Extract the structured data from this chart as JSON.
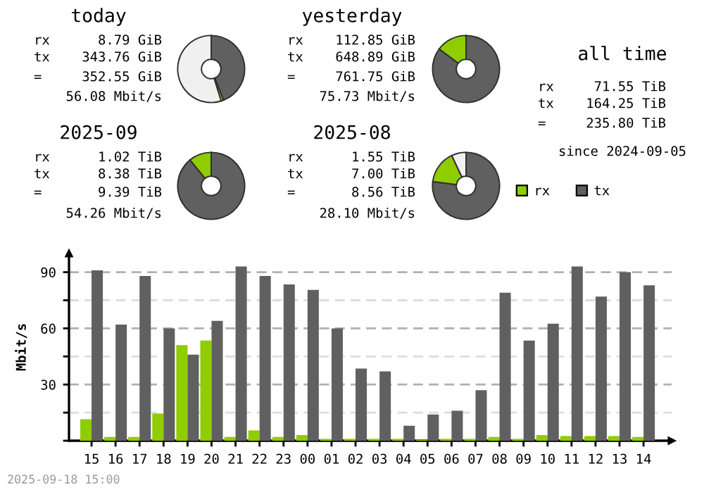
{
  "chart_data": [
    {
      "type": "donut",
      "title": "today",
      "categories": [
        null,
        null,
        null
      ],
      "values": [
        44,
        1.2,
        54.8
      ],
      "colors": [
        "#606060",
        "#8fcc00",
        "#f0f0f0"
      ],
      "annotations": [
        "rx 8.79 GiB",
        "tx 343.76 GiB",
        "= 352.55 GiB",
        "56.08 Mbit/s"
      ]
    },
    {
      "type": "donut",
      "title": "yesterday",
      "categories": [
        null,
        null
      ],
      "values": [
        85.2,
        14.8
      ],
      "colors": [
        "#606060",
        "#8fcc00"
      ],
      "annotations": [
        "rx 112.85 GiB",
        "tx 648.89 GiB",
        "= 761.75 GiB",
        "75.73 Mbit/s"
      ]
    },
    {
      "type": "other",
      "title": "all time",
      "annotations": [
        "rx 71.55 TiB",
        "tx 164.25 TiB",
        "= 235.80 TiB",
        "since 2024-09-05"
      ]
    },
    {
      "type": "donut",
      "title": "2025-09",
      "categories": [
        null,
        null
      ],
      "values": [
        89.1,
        10.9
      ],
      "colors": [
        "#606060",
        "#8fcc00"
      ],
      "annotations": [
        "rx 1.02 TiB",
        "tx 8.38 TiB",
        "= 9.39 TiB",
        "54.26 Mbit/s"
      ]
    },
    {
      "type": "donut",
      "title": "2025-08",
      "categories": [
        null,
        null,
        null
      ],
      "values": [
        77,
        16,
        7
      ],
      "colors": [
        "#606060",
        "#8fcc00",
        "#f0f0f0"
      ],
      "annotations": [
        "rx 1.55 TiB",
        "tx 7.00 TiB",
        "= 8.56 TiB",
        "28.10 Mbit/s"
      ]
    },
    {
      "type": "bar",
      "ylabel": "Mbit/s",
      "legend": "top right",
      "grid": "y",
      "categories": [
        "15",
        "16",
        "17",
        "18",
        "19",
        "20",
        "21",
        "22",
        "23",
        "00",
        "01",
        "02",
        "03",
        "04",
        "05",
        "06",
        "07",
        "08",
        "09",
        "10",
        "11",
        "12",
        "13",
        "14"
      ],
      "series": [
        {
          "name": "rx",
          "color": "#8fcc00",
          "values": [
            11.5,
            2,
            2,
            14.5,
            51,
            53.5,
            2,
            5.5,
            2,
            3,
            1,
            1,
            1,
            1,
            0.5,
            1,
            1,
            2,
            1,
            3,
            2.5,
            2.5,
            2.5,
            2
          ]
        },
        {
          "name": "tx",
          "color": "#606060",
          "values": [
            91,
            62,
            88,
            60,
            46,
            64,
            93,
            88,
            83.5,
            80.5,
            60,
            38.5,
            37,
            8,
            14,
            16,
            27,
            79,
            53.5,
            62.5,
            93,
            77,
            90,
            83
          ]
        }
      ],
      "ylim": [
        0,
        100
      ],
      "yticks": [
        {
          "value": 0,
          "label": null
        },
        {
          "value": 15,
          "label": null
        },
        30,
        {
          "value": 45,
          "label": null
        },
        60,
        {
          "value": 75,
          "label": null
        },
        90
      ],
      "annotations": [
        "2025-09-18 15:00"
      ]
    }
  ]
}
